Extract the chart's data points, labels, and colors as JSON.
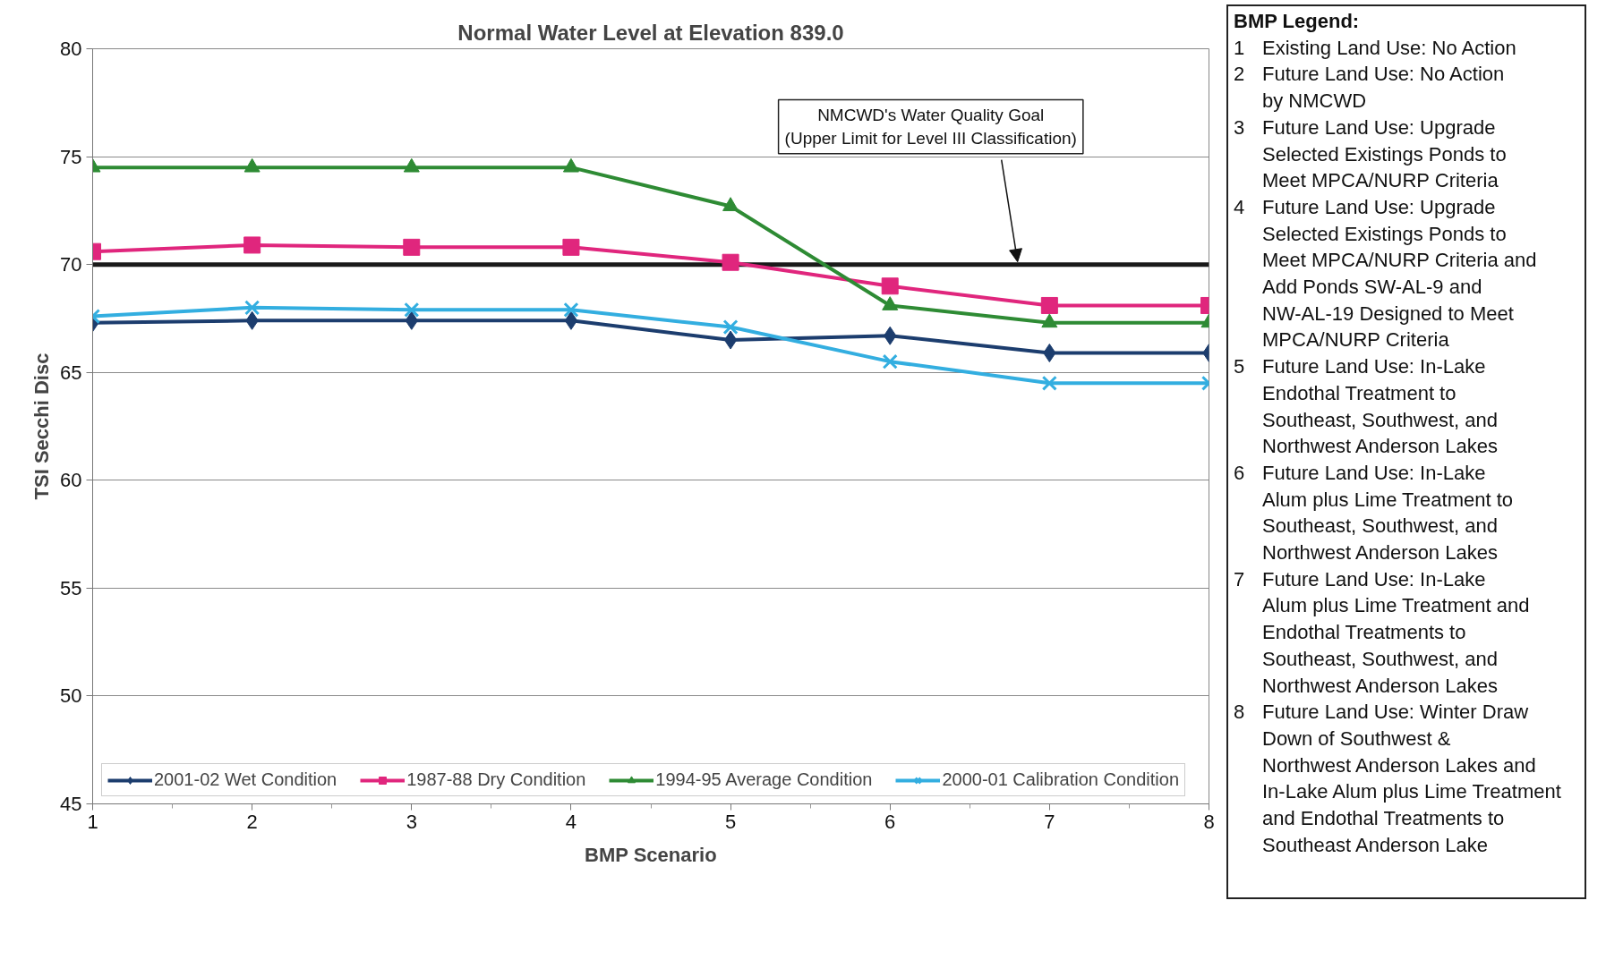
{
  "chart_data": {
    "type": "line",
    "title": "Normal Water Level at Elevation 839.0",
    "xlabel": "BMP Scenario",
    "ylabel": "TSI Secchi Disc",
    "x": [
      1,
      2,
      3,
      4,
      5,
      6,
      7,
      8
    ],
    "xlim": [
      1,
      8
    ],
    "xticks": [
      1,
      2,
      3,
      4,
      5,
      6,
      7,
      8
    ],
    "ylim": [
      45,
      80
    ],
    "yticks": [
      45,
      50,
      55,
      60,
      65,
      70,
      75,
      80
    ],
    "grid": "y",
    "legend": "bottom",
    "line_style": "solid",
    "series": [
      {
        "name": "2001-02 Wet Condition",
        "color": "#1c3d6e",
        "marker": "diamond",
        "values": [
          67.3,
          67.4,
          67.4,
          67.4,
          66.5,
          66.7,
          65.9,
          65.9
        ]
      },
      {
        "name": "1987-88 Dry Condition",
        "color": "#e0267d",
        "marker": "square",
        "values": [
          70.6,
          70.9,
          70.8,
          70.8,
          70.1,
          69.0,
          68.1,
          68.1
        ]
      },
      {
        "name": "1994-95 Average Condition",
        "color": "#2e8b34",
        "marker": "triangle",
        "values": [
          74.5,
          74.5,
          74.5,
          74.5,
          72.7,
          68.1,
          67.3,
          67.3
        ]
      },
      {
        "name": "2000-01 Calibration Condition",
        "color": "#33aee0",
        "marker": "cross",
        "values": [
          67.6,
          68.0,
          67.9,
          67.9,
          67.1,
          65.5,
          64.5,
          64.5
        ]
      }
    ],
    "ref_lines": [
      {
        "axis": "y",
        "value": 70,
        "color": "#1a1a1a"
      }
    ],
    "annotations": [
      {
        "text": "NMCWD's Water Quality Goal\n(Upper Limit for Level III Classification)",
        "x": 6.8,
        "y": 70
      },
      "BMP Legend:",
      "1 Existing Land Use: No Action",
      "2 Future Land Use: No Action\nby NMCWD",
      "3 Future Land Use: Upgrade\nSelected Existings Ponds to\nMeet MPCA/NURP  Criteria",
      "4 Future Land Use: Upgrade\nSelected Existings Ponds to\nMeet MPCA/NURP  Criteria and\nAdd Ponds SW-AL-9 and\nNW-AL-19 Designed to Meet\nMPCA/NURP Criteria",
      "5 Future Land Use: In-Lake\nEndothal Treatment to\nSoutheast, Southwest, and\nNorthwest Anderson Lakes",
      "6 Future Land Use: In-Lake\nAlum plus Lime Treatment to\nSoutheast, Southwest, and\nNorthwest Anderson Lakes",
      "7 Future Land Use: In-Lake\nAlum plus Lime Treatment and\nEndothal Treatments to\nSoutheast, Southwest, and\nNorthwest Anderson Lakes",
      "8 Future Land Use: Winter Draw\nDown of Southwest &\nNorthwest Anderson Lakes and\nIn-Lake Alum plus Lime Treatment\nand Endothal Treatments to\nSoutheast Anderson Lake"
    ]
  }
}
